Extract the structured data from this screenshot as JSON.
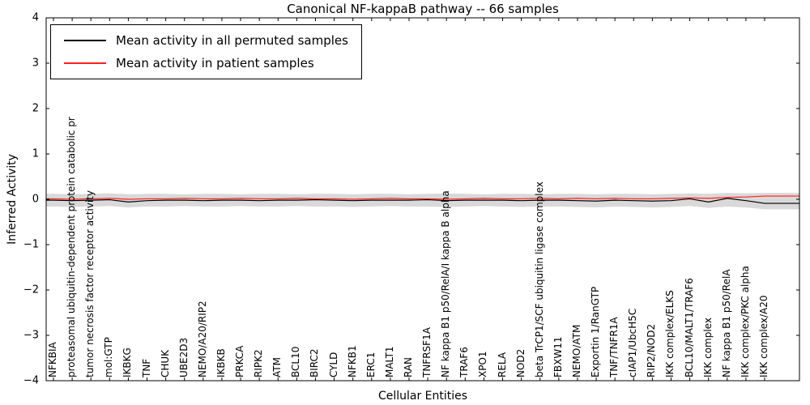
{
  "chart_data": {
    "type": "line",
    "title": "Canonical NF-kappaB pathway -- 66 samples",
    "xlabel": "Cellular Entities",
    "ylabel": "Inferred Activity",
    "ylim": [
      -4,
      4
    ],
    "yticks": [
      -4,
      -3,
      -2,
      -1,
      0,
      1,
      2,
      3,
      4
    ],
    "grid": false,
    "legend_position": "upper left",
    "categories": [
      "NFKBIA",
      "proteasomal ubiquitin-dependent protein catabolic pr",
      "tumor necrosis factor receptor activity",
      "mol:GTP",
      "IKBKG",
      "TNF",
      "CHUK",
      "UBE2D3",
      "NEMO/A20/RIP2",
      "IKBKB",
      "PRKCA",
      "RIPK2",
      "ATM",
      "BCL10",
      "BIRC2",
      "CYLD",
      "NFKB1",
      "ERC1",
      "MALT1",
      "RAN",
      "TNFRSF1A",
      "NF kappa B1 p50/RelA/I kappa B alpha",
      "TRAF6",
      "XPO1",
      "RELA",
      "NOD2",
      "beta TrCP1/SCF ubiquitin ligase complex",
      "FBXW11",
      "NEMO/ATM",
      "Exportin 1/RanGTP",
      "TNF/TNFR1A",
      "cIAP1/UbcH5C",
      "RIP2/NOD2",
      "IKK complex/ELKS",
      "BCL10/MALT1/TRAF6",
      "IKK complex",
      "NF kappa B1 p50/RelA",
      "IKK complex/PKC alpha",
      "IKK complex/A20"
    ],
    "series": [
      {
        "name": "Mean activity in all permuted samples",
        "color": "#000000",
        "values": [
          -0.02,
          -0.03,
          -0.02,
          -0.01,
          -0.06,
          -0.03,
          -0.02,
          -0.02,
          -0.03,
          -0.02,
          -0.02,
          -0.03,
          -0.02,
          -0.02,
          -0.01,
          -0.02,
          -0.03,
          -0.02,
          -0.02,
          -0.02,
          -0.01,
          -0.03,
          -0.02,
          -0.02,
          -0.02,
          -0.03,
          -0.02,
          -0.02,
          -0.03,
          -0.04,
          -0.02,
          -0.03,
          -0.04,
          -0.03,
          0.01,
          -0.06,
          0.02,
          -0.03,
          -0.09
        ]
      },
      {
        "name": "Mean activity in patient samples",
        "color": "#ff2020",
        "values": [
          0.01,
          0.0,
          0.01,
          0.02,
          0.0,
          0.01,
          0.01,
          0.02,
          0.01,
          0.01,
          0.02,
          0.01,
          0.01,
          0.02,
          0.01,
          0.01,
          0.0,
          0.01,
          0.02,
          0.01,
          0.01,
          0.0,
          0.01,
          0.02,
          0.01,
          0.01,
          0.02,
          0.01,
          0.02,
          0.01,
          0.02,
          0.01,
          0.01,
          0.02,
          0.03,
          0.02,
          0.04,
          0.05,
          0.07
        ]
      }
    ],
    "band": {
      "name": "permuted samples spread",
      "color": "#d9d9d9",
      "upper": [
        0.12,
        0.11,
        0.12,
        0.13,
        0.11,
        0.12,
        0.12,
        0.11,
        0.12,
        0.12,
        0.11,
        0.12,
        0.12,
        0.11,
        0.12,
        0.12,
        0.11,
        0.12,
        0.12,
        0.11,
        0.12,
        0.13,
        0.12,
        0.11,
        0.12,
        0.12,
        0.11,
        0.12,
        0.12,
        0.11,
        0.12,
        0.12,
        0.11,
        0.12,
        0.13,
        0.12,
        0.14,
        0.13,
        0.14
      ],
      "lower": [
        -0.16,
        -0.17,
        -0.16,
        -0.15,
        -0.18,
        -0.16,
        -0.16,
        -0.15,
        -0.16,
        -0.16,
        -0.15,
        -0.16,
        -0.16,
        -0.15,
        -0.16,
        -0.16,
        -0.17,
        -0.16,
        -0.15,
        -0.16,
        -0.16,
        -0.17,
        -0.16,
        -0.15,
        -0.16,
        -0.17,
        -0.16,
        -0.16,
        -0.17,
        -0.18,
        -0.16,
        -0.17,
        -0.18,
        -0.17,
        -0.15,
        -0.19,
        -0.16,
        -0.18,
        -0.22
      ]
    }
  }
}
